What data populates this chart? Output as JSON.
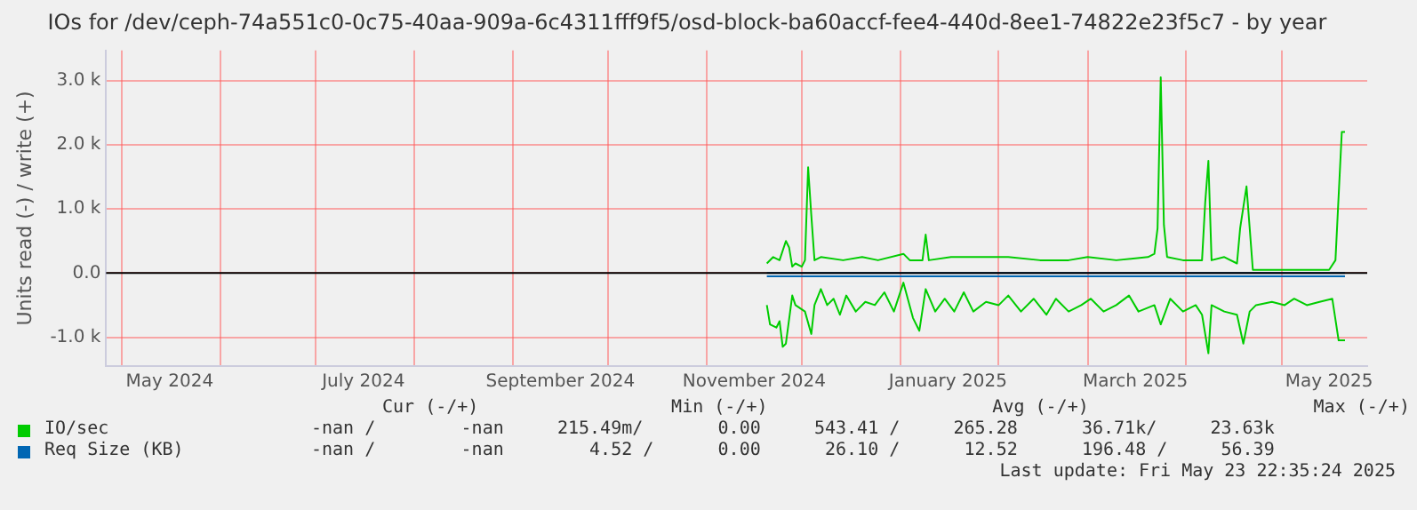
{
  "chart_data": {
    "type": "line",
    "title": "IOs for /dev/ceph-74a551c0-0c75-40aa-909a-6c4311fff9f5/osd-block-ba60accf-fee4-440d-8ee1-74822e23f5c7 - by year",
    "ylabel": "Units read (-) / write (+)",
    "xlim": [
      "2024-04-26",
      "2025-05-28"
    ],
    "xticks": [
      {
        "value": "2024-05-01",
        "label": null
      },
      {
        "value": "2024-05-16",
        "label": "May 2024"
      },
      {
        "value": "2024-06-01",
        "label": null
      },
      {
        "value": "2024-07-01",
        "label": null
      },
      {
        "value": "2024-07-16",
        "label": "July 2024"
      },
      {
        "value": "2024-08-01",
        "label": null
      },
      {
        "value": "2024-09-01",
        "label": null
      },
      {
        "value": "2024-09-16",
        "label": "September 2024"
      },
      {
        "value": "2024-10-01",
        "label": null
      },
      {
        "value": "2024-11-01",
        "label": null
      },
      {
        "value": "2024-11-16",
        "label": "November 2024"
      },
      {
        "value": "2024-12-01",
        "label": null
      },
      {
        "value": "2025-01-01",
        "label": null
      },
      {
        "value": "2025-01-16",
        "label": "January 2025"
      },
      {
        "value": "2025-02-01",
        "label": null
      },
      {
        "value": "2025-03-01",
        "label": null
      },
      {
        "value": "2025-03-16",
        "label": "March 2025"
      },
      {
        "value": "2025-04-01",
        "label": null
      },
      {
        "value": "2025-05-01",
        "label": null
      },
      {
        "value": "2025-05-16",
        "label": "May 2025"
      }
    ],
    "ylim": [
      -1450,
      3470
    ],
    "yticks": [
      {
        "value": -1000,
        "label": "-1.0 k"
      },
      {
        "value": 0,
        "label": "0.0"
      },
      {
        "value": 1000,
        "label": "1.0 k"
      },
      {
        "value": 2000,
        "label": "2.0 k"
      },
      {
        "value": 3000,
        "label": "3.0 k"
      }
    ],
    "grid": true,
    "legend": "bottom",
    "marker": "none",
    "ref_lines": [
      {
        "axis": "y",
        "value": 0,
        "color": "#000000"
      }
    ],
    "series": [
      {
        "name": "IO/sec",
        "color": "#00cc00",
        "x": [
          "2024-11-20",
          "2024-11-22",
          "2024-11-24",
          "2024-11-26",
          "2024-11-27",
          "2024-11-28",
          "2024-11-29",
          "2024-12-01",
          "2024-12-02",
          "2024-12-03",
          "2024-12-04",
          "2024-12-05",
          "2024-12-07",
          "2024-12-14",
          "2024-12-20",
          "2024-12-25",
          "2025-01-02",
          "2025-01-04",
          "2025-01-08",
          "2025-01-09",
          "2025-01-10",
          "2025-01-17",
          "2025-01-26",
          "2025-02-04",
          "2025-02-14",
          "2025-02-23",
          "2025-03-01",
          "2025-03-10",
          "2025-03-20",
          "2025-03-22",
          "2025-03-23",
          "2025-03-24",
          "2025-03-25",
          "2025-03-26",
          "2025-03-31",
          "2025-04-06",
          "2025-04-07",
          "2025-04-08",
          "2025-04-09",
          "2025-04-13",
          "2025-04-17",
          "2025-04-18",
          "2025-04-20",
          "2025-04-21",
          "2025-04-22",
          "2025-04-30",
          "2025-05-09",
          "2025-05-16",
          "2025-05-18",
          "2025-05-20",
          "2025-05-21"
        ],
        "values": [
          150,
          250,
          200,
          500,
          400,
          100,
          150,
          100,
          200,
          1650,
          900,
          200,
          250,
          200,
          250,
          200,
          300,
          200,
          200,
          600,
          200,
          250,
          250,
          250,
          200,
          200,
          250,
          200,
          250,
          300,
          700,
          3050,
          750,
          250,
          200,
          200,
          1100,
          1750,
          200,
          250,
          150,
          700,
          1350,
          700,
          50,
          50,
          50,
          50,
          200,
          2200,
          2200
        ]
      },
      {
        "color": "#00cc00",
        "x": [
          "2024-11-20",
          "2024-11-21",
          "2024-11-23",
          "2024-11-24",
          "2024-11-25",
          "2024-11-26",
          "2024-11-28",
          "2024-11-29",
          "2024-12-02",
          "2024-12-04",
          "2024-12-05",
          "2024-12-07",
          "2024-12-09",
          "2024-12-11",
          "2024-12-13",
          "2024-12-15",
          "2024-12-18",
          "2024-12-21",
          "2024-12-24",
          "2024-12-27",
          "2024-12-30",
          "2025-01-02",
          "2025-01-05",
          "2025-01-07",
          "2025-01-09",
          "2025-01-12",
          "2025-01-15",
          "2025-01-18",
          "2025-01-21",
          "2025-01-24",
          "2025-01-28",
          "2025-02-01",
          "2025-02-04",
          "2025-02-08",
          "2025-02-12",
          "2025-02-16",
          "2025-02-19",
          "2025-02-23",
          "2025-02-27",
          "2025-03-02",
          "2025-03-06",
          "2025-03-10",
          "2025-03-14",
          "2025-03-17",
          "2025-03-22",
          "2025-03-24",
          "2025-03-27",
          "2025-03-31",
          "2025-04-04",
          "2025-04-06",
          "2025-04-08",
          "2025-04-09",
          "2025-04-13",
          "2025-04-17",
          "2025-04-19",
          "2025-04-21",
          "2025-04-23",
          "2025-04-28",
          "2025-05-02",
          "2025-05-05",
          "2025-05-09",
          "2025-05-13",
          "2025-05-17",
          "2025-05-19",
          "2025-05-21"
        ],
        "values": [
          -500,
          -800,
          -850,
          -750,
          -1150,
          -1100,
          -350,
          -500,
          -600,
          -950,
          -500,
          -250,
          -500,
          -400,
          -650,
          -350,
          -600,
          -450,
          -500,
          -300,
          -600,
          -150,
          -700,
          -900,
          -250,
          -600,
          -400,
          -600,
          -300,
          -600,
          -450,
          -500,
          -350,
          -600,
          -400,
          -650,
          -400,
          -600,
          -500,
          -400,
          -600,
          -500,
          -350,
          -600,
          -500,
          -800,
          -400,
          -600,
          -500,
          -650,
          -1250,
          -500,
          -600,
          -650,
          -1100,
          -600,
          -500,
          -450,
          -500,
          -400,
          -500,
          -450,
          -400,
          -1050,
          -1050
        ]
      },
      {
        "name": "Req Size (KB)",
        "color": "#0066b3",
        "x": [
          "2024-11-20",
          "2025-05-21"
        ],
        "values": [
          0,
          0
        ]
      },
      {
        "color": "#0066b3",
        "x": [
          "2024-11-20",
          "2025-05-21"
        ],
        "values": [
          -50,
          -50
        ]
      }
    ],
    "annotations": [
      "Cur (-/+)                  Min (-/+)                     Avg (-/+)                     Max (-/+)",
      "-nan /        -nan     215.49m/       0.00     543.41 /     265.28      36.71k/     23.63k",
      "-nan /        -nan        4.52 /      0.00      26.10 /      12.52      196.48 /     56.39",
      "Last update: Fri May 23 22:35:24 2025"
    ]
  }
}
